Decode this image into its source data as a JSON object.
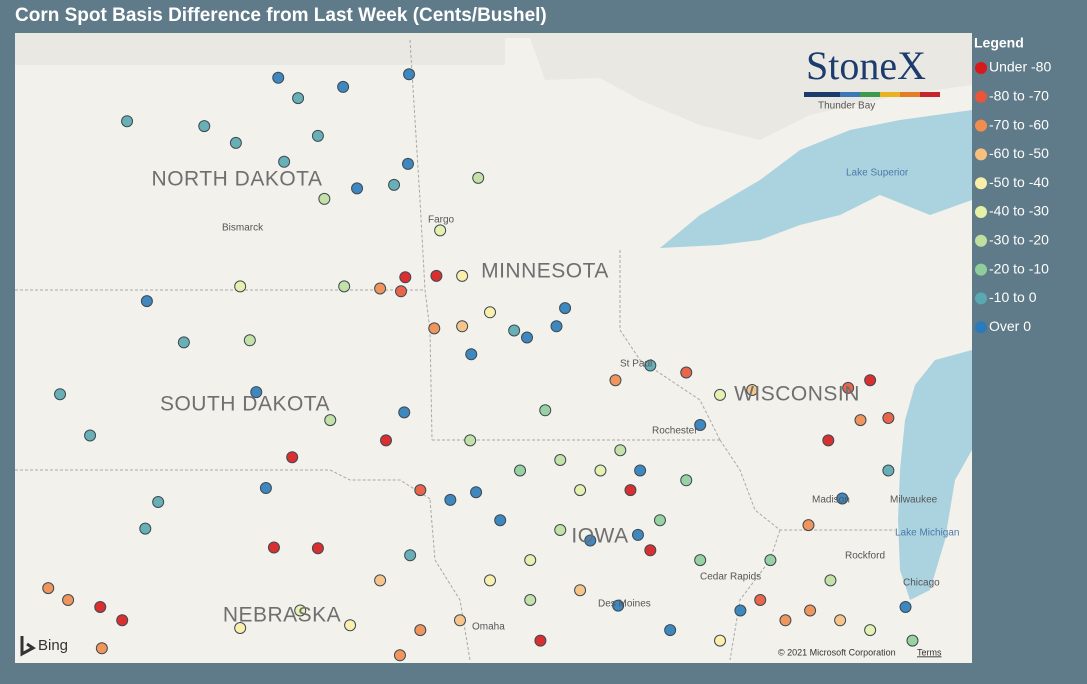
{
  "title": "Corn Spot Basis Difference from Last Week (Cents/Bushel)",
  "logo": "StoneX",
  "legend": {
    "title": "Legend",
    "items": [
      {
        "label": "Under -80",
        "color": "#d7191c"
      },
      {
        "label": "-80 to -70",
        "color": "#e8553a"
      },
      {
        "label": "-70 to -60",
        "color": "#f08c4e"
      },
      {
        "label": "-60 to -50",
        "color": "#f7c07f"
      },
      {
        "label": "-50 to -40",
        "color": "#fbeea6"
      },
      {
        "label": "-40 to -30",
        "color": "#e6f1a8"
      },
      {
        "label": "-30 to -20",
        "color": "#bfe0a0"
      },
      {
        "label": "-20 to -10",
        "color": "#8fce9a"
      },
      {
        "label": "-10 to 0",
        "color": "#5aa8b0"
      },
      {
        "label": "Over 0",
        "color": "#2b7bba"
      }
    ]
  },
  "map": {
    "extent": {
      "lon": [
        -104.6,
        -86.75
      ],
      "lat": [
        40.72,
        49.72
      ]
    },
    "states": [
      "NORTH DAKOTA",
      "SOUTH DAKOTA",
      "MINNESOTA",
      "WISCONSIN",
      "IOWA",
      "NEBRASKA"
    ],
    "cities": [
      "Bismarck",
      "Fargo",
      "St Paul",
      "Rochester",
      "Madison",
      "Milwaukee",
      "Rockford",
      "Chicago",
      "Cedar Rapids",
      "Des Moines",
      "Omaha",
      "Thunder Bay"
    ],
    "water": [
      "Lake Superior",
      "Lake Michigan"
    ],
    "provider": "Bing",
    "copyright": "© 2021 Microsoft Corporation",
    "terms": "Terms"
  },
  "stations": [
    {
      "lon": -99.69,
      "lat": 49.08,
      "bin": 9
    },
    {
      "lon": -98.48,
      "lat": 48.95,
      "bin": 9
    },
    {
      "lon": -97.25,
      "lat": 49.13,
      "bin": 9
    },
    {
      "lon": -102.51,
      "lat": 48.46,
      "bin": 8
    },
    {
      "lon": -101.07,
      "lat": 48.39,
      "bin": 8
    },
    {
      "lon": -100.48,
      "lat": 48.15,
      "bin": 8
    },
    {
      "lon": -99.32,
      "lat": 48.79,
      "bin": 8
    },
    {
      "lon": -98.95,
      "lat": 48.25,
      "bin": 8
    },
    {
      "lon": -99.58,
      "lat": 47.88,
      "bin": 8
    },
    {
      "lon": -98.22,
      "lat": 47.5,
      "bin": 9
    },
    {
      "lon": -97.53,
      "lat": 47.55,
      "bin": 8
    },
    {
      "lon": -97.27,
      "lat": 47.85,
      "bin": 9
    },
    {
      "lon": -98.83,
      "lat": 47.35,
      "bin": 6
    },
    {
      "lon": -95.96,
      "lat": 47.65,
      "bin": 6
    },
    {
      "lon": -102.14,
      "lat": 45.89,
      "bin": 9
    },
    {
      "lon": -101.45,
      "lat": 45.3,
      "bin": 8
    },
    {
      "lon": -100.1,
      "lat": 44.59,
      "bin": 9
    },
    {
      "lon": -103.76,
      "lat": 44.56,
      "bin": 8
    },
    {
      "lon": -103.2,
      "lat": 43.97,
      "bin": 8
    },
    {
      "lon": -101.93,
      "lat": 43.02,
      "bin": 8
    },
    {
      "lon": -102.17,
      "lat": 42.64,
      "bin": 8
    },
    {
      "lon": -99.92,
      "lat": 43.22,
      "bin": 9
    },
    {
      "lon": -99.43,
      "lat": 43.66,
      "bin": 0
    },
    {
      "lon": -99.77,
      "lat": 42.37,
      "bin": 0
    },
    {
      "lon": -98.95,
      "lat": 42.36,
      "bin": 0
    },
    {
      "lon": -103.01,
      "lat": 41.52,
      "bin": 0
    },
    {
      "lon": -102.6,
      "lat": 41.33,
      "bin": 0
    },
    {
      "lon": -103.61,
      "lat": 41.62,
      "bin": 2
    },
    {
      "lon": -103.98,
      "lat": 41.79,
      "bin": 2
    },
    {
      "lon": -102.98,
      "lat": 40.93,
      "bin": 2
    },
    {
      "lon": -97.32,
      "lat": 46.23,
      "bin": 0
    },
    {
      "lon": -96.74,
      "lat": 46.25,
      "bin": 0
    },
    {
      "lon": -97.79,
      "lat": 46.07,
      "bin": 2
    },
    {
      "lon": -97.4,
      "lat": 46.03,
      "bin": 1
    },
    {
      "lon": -96.78,
      "lat": 45.5,
      "bin": 2
    },
    {
      "lon": -96.26,
      "lat": 46.25,
      "bin": 4
    },
    {
      "lon": -96.26,
      "lat": 45.53,
      "bin": 3
    },
    {
      "lon": -95.74,
      "lat": 45.73,
      "bin": 4
    },
    {
      "lon": -95.29,
      "lat": 45.47,
      "bin": 8
    },
    {
      "lon": -94.5,
      "lat": 45.53,
      "bin": 9
    },
    {
      "lon": -94.34,
      "lat": 45.79,
      "bin": 9
    },
    {
      "lon": -95.05,
      "lat": 45.37,
      "bin": 9
    },
    {
      "lon": -96.09,
      "lat": 45.13,
      "bin": 9
    },
    {
      "lon": -97.34,
      "lat": 44.3,
      "bin": 9
    },
    {
      "lon": -97.68,
      "lat": 43.9,
      "bin": 0
    },
    {
      "lon": -97.04,
      "lat": 43.19,
      "bin": 1
    },
    {
      "lon": -96.48,
      "lat": 43.05,
      "bin": 9
    },
    {
      "lon": -96.0,
      "lat": 43.16,
      "bin": 9
    },
    {
      "lon": -95.55,
      "lat": 42.76,
      "bin": 9
    },
    {
      "lon": -95.18,
      "lat": 43.47,
      "bin": 7
    },
    {
      "lon": -94.43,
      "lat": 43.62,
      "bin": 6
    },
    {
      "lon": -93.68,
      "lat": 43.47,
      "bin": 5
    },
    {
      "lon": -93.12,
      "lat": 43.19,
      "bin": 0
    },
    {
      "lon": -92.94,
      "lat": 43.47,
      "bin": 9
    },
    {
      "lon": -93.4,
      "lat": 44.76,
      "bin": 2
    },
    {
      "lon": -92.75,
      "lat": 44.97,
      "bin": 8
    },
    {
      "lon": -92.08,
      "lat": 44.87,
      "bin": 1
    },
    {
      "lon": -91.82,
      "lat": 44.12,
      "bin": 9
    },
    {
      "lon": -91.45,
      "lat": 44.55,
      "bin": 5
    },
    {
      "lon": -90.85,
      "lat": 44.62,
      "bin": 3
    },
    {
      "lon": -88.65,
      "lat": 44.76,
      "bin": 0
    },
    {
      "lon": -89.06,
      "lat": 44.65,
      "bin": 1
    },
    {
      "lon": -88.83,
      "lat": 44.19,
      "bin": 2
    },
    {
      "lon": -88.31,
      "lat": 44.22,
      "bin": 1
    },
    {
      "lon": -89.43,
      "lat": 43.9,
      "bin": 0
    },
    {
      "lon": -88.31,
      "lat": 43.47,
      "bin": 8
    },
    {
      "lon": -89.17,
      "lat": 43.07,
      "bin": 9
    },
    {
      "lon": -89.8,
      "lat": 42.69,
      "bin": 2
    },
    {
      "lon": -93.87,
      "lat": 42.47,
      "bin": 9
    },
    {
      "lon": -94.43,
      "lat": 42.62,
      "bin": 6
    },
    {
      "lon": -92.75,
      "lat": 42.33,
      "bin": 0
    },
    {
      "lon": -92.98,
      "lat": 42.55,
      "bin": 9
    },
    {
      "lon": -91.82,
      "lat": 42.19,
      "bin": 7
    },
    {
      "lon": -91.07,
      "lat": 41.47,
      "bin": 9
    },
    {
      "lon": -93.35,
      "lat": 41.54,
      "bin": 9
    },
    {
      "lon": -94.06,
      "lat": 41.76,
      "bin": 3
    },
    {
      "lon": -94.99,
      "lat": 41.62,
      "bin": 6
    },
    {
      "lon": -95.74,
      "lat": 41.9,
      "bin": 4
    },
    {
      "lon": -96.3,
      "lat": 41.33,
      "bin": 3
    },
    {
      "lon": -97.04,
      "lat": 41.19,
      "bin": 2
    },
    {
      "lon": -97.42,
      "lat": 40.83,
      "bin": 2
    },
    {
      "lon": -98.35,
      "lat": 41.26,
      "bin": 4
    },
    {
      "lon": -99.28,
      "lat": 41.47,
      "bin": 5
    },
    {
      "lon": -100.4,
      "lat": 41.22,
      "bin": 4
    },
    {
      "lon": -97.79,
      "lat": 41.9,
      "bin": 3
    },
    {
      "lon": -97.23,
      "lat": 42.26,
      "bin": 8
    },
    {
      "lon": -94.8,
      "lat": 41.04,
      "bin": 0
    },
    {
      "lon": -92.38,
      "lat": 41.19,
      "bin": 9
    },
    {
      "lon": -90.7,
      "lat": 41.62,
      "bin": 1
    },
    {
      "lon": -90.23,
      "lat": 41.33,
      "bin": 2
    },
    {
      "lon": -89.77,
      "lat": 41.47,
      "bin": 2
    },
    {
      "lon": -89.39,
      "lat": 41.9,
      "bin": 6
    },
    {
      "lon": -89.21,
      "lat": 41.33,
      "bin": 3
    },
    {
      "lon": -87.99,
      "lat": 41.52,
      "bin": 9
    },
    {
      "lon": -87.86,
      "lat": 41.04,
      "bin": 7
    },
    {
      "lon": -88.65,
      "lat": 41.19,
      "bin": 5
    },
    {
      "lon": -91.45,
      "lat": 41.04,
      "bin": 4
    },
    {
      "lon": -90.51,
      "lat": 42.19,
      "bin": 7
    },
    {
      "lon": -92.08,
      "lat": 43.33,
      "bin": 7
    },
    {
      "lon": -94.71,
      "lat": 44.33,
      "bin": 7
    },
    {
      "lon": -96.11,
      "lat": 43.9,
      "bin": 6
    },
    {
      "lon": -98.72,
      "lat": 44.19,
      "bin": 6
    },
    {
      "lon": -100.22,
      "lat": 45.33,
      "bin": 6
    },
    {
      "lon": -98.46,
      "lat": 46.1,
      "bin": 6
    },
    {
      "lon": -100.4,
      "lat": 46.1,
      "bin": 5
    },
    {
      "lon": -96.67,
      "lat": 46.9,
      "bin": 5
    },
    {
      "lon": -93.31,
      "lat": 43.76,
      "bin": 6
    },
    {
      "lon": -94.06,
      "lat": 43.19,
      "bin": 5
    },
    {
      "lon": -94.99,
      "lat": 42.19,
      "bin": 5
    },
    {
      "lon": -92.57,
      "lat": 42.76,
      "bin": 7
    }
  ]
}
